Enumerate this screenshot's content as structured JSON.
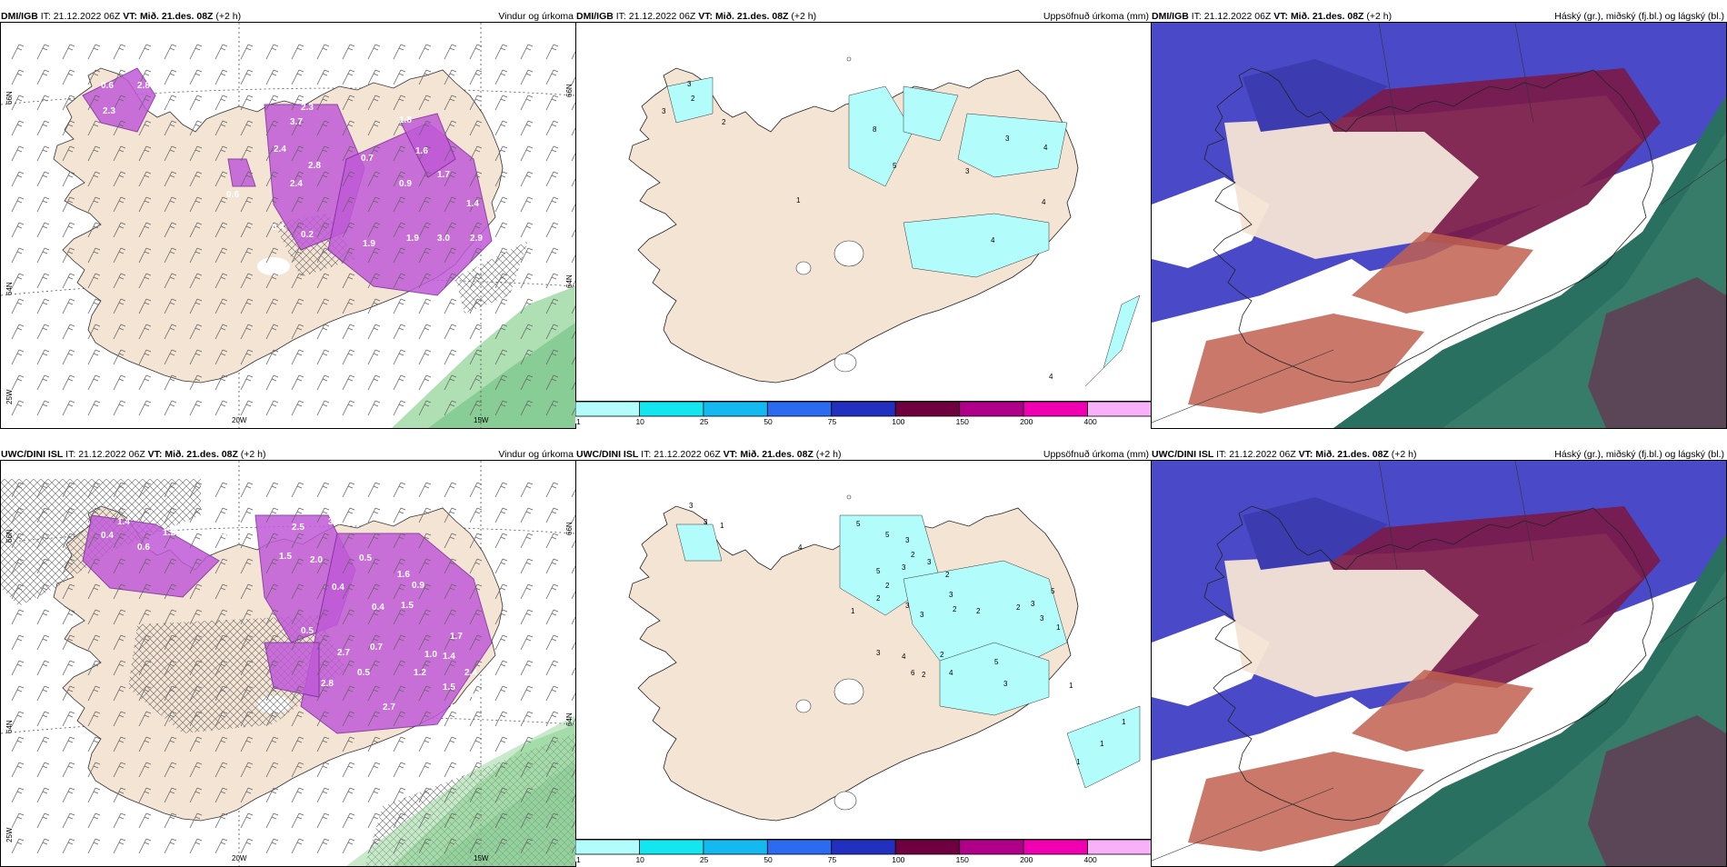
{
  "panels": [
    {
      "id": "p1",
      "model": "DMI/IGB",
      "it_label": "IT:",
      "it": "21.12.2022 06Z",
      "vt_label": "VT:",
      "vt": "Mið. 21.des. 08Z",
      "lead": "(+2 h)",
      "title": "Vindur og úrkoma",
      "grid_labels": {
        "lat_top": "66N",
        "lat_mid": "64N",
        "lon_bot": "20W",
        "lon_right": "15W",
        "lat_right_top": "66N",
        "lat_right_mid": "64N",
        "lon_left": "25W"
      },
      "values": [
        "2.8",
        "2.3",
        "3.7",
        "2.4",
        "2.8",
        "2.4",
        "1.8",
        "1.6",
        "0.7",
        "0.9",
        "1.7",
        "1.4",
        "0.6",
        "0.4",
        "0.2",
        "1.9",
        "1.9",
        "3.0",
        "2.9",
        "1.3",
        "2.3",
        "0.6",
        "0.4"
      ]
    },
    {
      "id": "p2",
      "model": "DMI/IGB",
      "it_label": "IT:",
      "it": "21.12.2022 06Z",
      "vt_label": "VT:",
      "vt": "Mið. 21.des. 08Z",
      "lead": "(+2 h)",
      "title": "Uppsöfnuð úrkoma (mm)",
      "values": [
        "3",
        "2",
        "3",
        "2",
        "1",
        "8",
        "5",
        "3",
        "3",
        "4",
        "4",
        "4",
        "4"
      ]
    },
    {
      "id": "p3",
      "model": "DMI/IGB",
      "it_label": "IT:",
      "it": "21.12.2022 06Z",
      "vt_label": "VT:",
      "vt": "Mið. 21.des. 08Z",
      "lead": "(+2 h)",
      "title": "Háský (gr.), miðský (fj.bl.) og lágský (bl.)"
    },
    {
      "id": "p4",
      "model": "UWC/DINI ISL",
      "it_label": "IT:",
      "it": "21.12.2022 06Z",
      "vt_label": "VT:",
      "vt": "Mið. 21.des. 08Z",
      "lead": "(+2 h)",
      "title": "Vindur og úrkoma",
      "grid_labels": {
        "lat_top": "66N",
        "lat_mid": "64N",
        "lon_bot": "20W",
        "lon_right": "15W",
        "lat_right_top": "66N",
        "lat_right_mid": "64N",
        "lon_left": "25W"
      },
      "values": [
        "1.4",
        "0.4",
        "0.6",
        "1.2",
        "1.8",
        "1.5",
        "2.5",
        "3.1",
        "2.0",
        "0.4",
        "0.5",
        "1.6",
        "0.9",
        "1.5",
        "0.4",
        "0.5",
        "2.7",
        "1.0",
        "1.4",
        "1.5",
        "1.2",
        "0.7",
        "0.5",
        "2.8",
        "2.7",
        "1.7",
        "2.4",
        "1.3",
        "0.7",
        "1.5",
        "0.3"
      ]
    },
    {
      "id": "p5",
      "model": "UWC/DINI ISL",
      "it_label": "IT:",
      "it": "21.12.2022 06Z",
      "vt_label": "VT:",
      "vt": "Mið. 21.des. 08Z",
      "lead": "(+2 h)",
      "title": "Uppsöfnuð úrkoma (mm)",
      "values": [
        "3",
        "3",
        "1",
        "4",
        "5",
        "5",
        "3",
        "2",
        "3",
        "2",
        "5",
        "3",
        "1",
        "2",
        "2",
        "3",
        "3",
        "3",
        "2",
        "2",
        "2",
        "3",
        "3",
        "5",
        "1",
        "3",
        "4",
        "6",
        "2",
        "2",
        "4",
        "5",
        "3",
        "1",
        "1",
        "1",
        "1"
      ]
    },
    {
      "id": "p6",
      "model": "UWC/DINI ISL",
      "it_label": "IT:",
      "it": "21.12.2022 06Z",
      "vt_label": "VT:",
      "vt": "Mið. 21.des. 08Z",
      "lead": "(+2 h)",
      "title": "Háský (gr.), miðský (fj.bl.) og lágský (bl.)"
    }
  ],
  "colorbar": {
    "labels": [
      "1",
      "10",
      "25",
      "50",
      "75",
      "100",
      "150",
      "200",
      "400"
    ],
    "colors": [
      "#b3fcfc",
      "#14e6f0",
      "#14b9f0",
      "#2a6bf0",
      "#2230c0",
      "#6e0040",
      "#b0008a",
      "#f000b0",
      "#f8b0f8"
    ]
  },
  "colors": {
    "land": "#f4e4d4",
    "land_dim": "#e8d8c8",
    "precip": "#c05ad8",
    "precip_dark": "#7a2a9a",
    "sea_green": "#9ad8a0",
    "cyan_precip": "#b3fcfc",
    "cloud_blue": "#4a4ac8",
    "cloud_maroon": "#7a1a4a",
    "cloud_red": "#c06050",
    "cloud_green": "#2a7060"
  }
}
